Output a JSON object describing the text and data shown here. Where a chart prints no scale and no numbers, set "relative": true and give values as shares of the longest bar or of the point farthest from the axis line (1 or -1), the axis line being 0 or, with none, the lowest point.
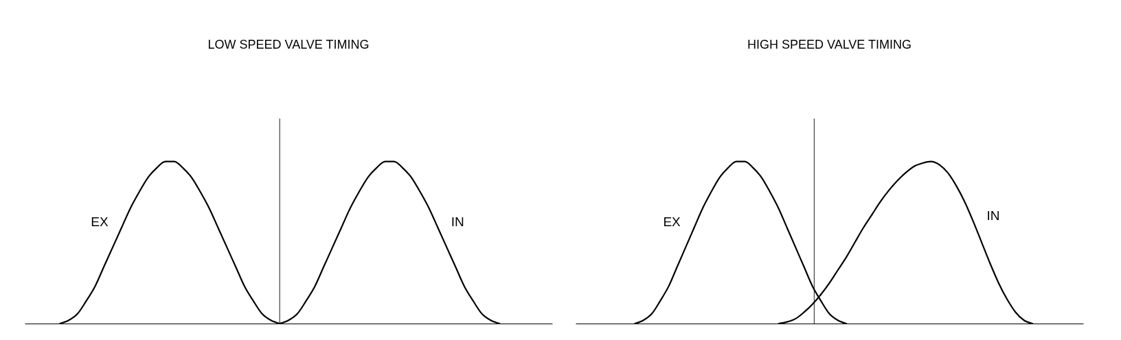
{
  "chart_data": [
    {
      "type": "line",
      "title": "LOW SPEED VALVE TIMING",
      "relative": true,
      "tick_labels": false,
      "grid": false,
      "categories": [
        null,
        null,
        null,
        null,
        null,
        null,
        null,
        null,
        null,
        null,
        null,
        null,
        null,
        null,
        null,
        null,
        null,
        null,
        null,
        null,
        null,
        null,
        null,
        null,
        null,
        null,
        null,
        null,
        null,
        null,
        null,
        null,
        null,
        null,
        null,
        null,
        null,
        null,
        null,
        null,
        null,
        null,
        null,
        null,
        null,
        null,
        null,
        null,
        null,
        null,
        null,
        null,
        null,
        null,
        null,
        null,
        null,
        null,
        null,
        null,
        null
      ],
      "series": [
        {
          "name": "EX",
          "color": "#000000",
          "values": [
            null,
            null,
            null,
            null,
            0,
            0.02,
            0.06,
            0.14,
            0.23,
            0.35,
            0.47,
            0.59,
            0.71,
            0.81,
            0.9,
            0.96,
            1,
            1,
            0.96,
            0.9,
            0.81,
            0.71,
            0.59,
            0.47,
            0.35,
            0.23,
            0.14,
            0.06,
            0.02,
            0,
            null,
            null,
            null,
            null,
            null,
            null,
            null,
            null,
            null,
            null,
            null,
            null,
            null,
            null,
            null,
            null,
            null,
            null,
            null,
            null,
            null,
            null,
            null,
            null,
            null,
            null,
            null,
            null,
            null,
            null,
            null
          ]
        },
        {
          "name": "IN",
          "color": "#000000",
          "values": [
            null,
            null,
            null,
            null,
            null,
            null,
            null,
            null,
            null,
            null,
            null,
            null,
            null,
            null,
            null,
            null,
            null,
            null,
            null,
            null,
            null,
            null,
            null,
            null,
            null,
            null,
            null,
            null,
            null,
            0,
            0.02,
            0.06,
            0.14,
            0.23,
            0.35,
            0.47,
            0.59,
            0.71,
            0.81,
            0.9,
            0.96,
            1,
            1,
            0.96,
            0.9,
            0.81,
            0.71,
            0.59,
            0.47,
            0.35,
            0.23,
            0.14,
            0.06,
            0.02,
            0,
            null,
            null,
            null,
            null,
            null,
            null
          ]
        }
      ]
    },
    {
      "type": "line",
      "title": "HIGH SPEED VALVE TIMING",
      "relative": true,
      "tick_labels": false,
      "grid": false,
      "categories": [
        null,
        null,
        null,
        null,
        null,
        null,
        null,
        null,
        null,
        null,
        null,
        null,
        null,
        null,
        null,
        null,
        null,
        null,
        null,
        null,
        null,
        null,
        null,
        null,
        null,
        null,
        null,
        null,
        null,
        null,
        null,
        null,
        null,
        null,
        null,
        null,
        null,
        null,
        null,
        null,
        null,
        null,
        null,
        null,
        null,
        null,
        null,
        null,
        null,
        null,
        null,
        null,
        null,
        null,
        null,
        null,
        null,
        null,
        null,
        null,
        null
      ],
      "series": [
        {
          "name": "EX",
          "color": "#000000",
          "values": [
            null,
            null,
            null,
            null,
            null,
            null,
            null,
            0,
            0.02,
            0.06,
            0.14,
            0.23,
            0.35,
            0.47,
            0.59,
            0.71,
            0.81,
            0.9,
            0.96,
            1,
            1,
            0.96,
            0.9,
            0.81,
            0.71,
            0.59,
            0.47,
            0.35,
            0.23,
            0.14,
            0.06,
            0.02,
            0,
            null,
            null,
            null,
            null,
            null,
            null,
            null,
            null,
            null,
            null,
            null,
            null,
            null,
            null,
            null,
            null,
            null,
            null,
            null,
            null,
            null,
            null,
            null,
            null,
            null,
            null,
            null,
            null
          ]
        },
        {
          "name": "IN",
          "color": "#000000",
          "values": [
            null,
            null,
            null,
            null,
            null,
            null,
            null,
            null,
            null,
            null,
            null,
            null,
            null,
            null,
            null,
            null,
            null,
            null,
            null,
            null,
            null,
            null,
            null,
            null,
            0,
            0.01,
            0.03,
            0.07,
            0.12,
            0.18,
            0.25,
            0.33,
            0.41,
            0.5,
            0.59,
            0.67,
            0.75,
            0.82,
            0.88,
            0.93,
            0.97,
            0.99,
            1,
            0.98,
            0.93,
            0.85,
            0.75,
            0.63,
            0.5,
            0.37,
            0.25,
            0.15,
            0.07,
            0.02,
            0,
            null,
            null,
            null,
            null,
            null,
            null
          ]
        }
      ]
    }
  ]
}
